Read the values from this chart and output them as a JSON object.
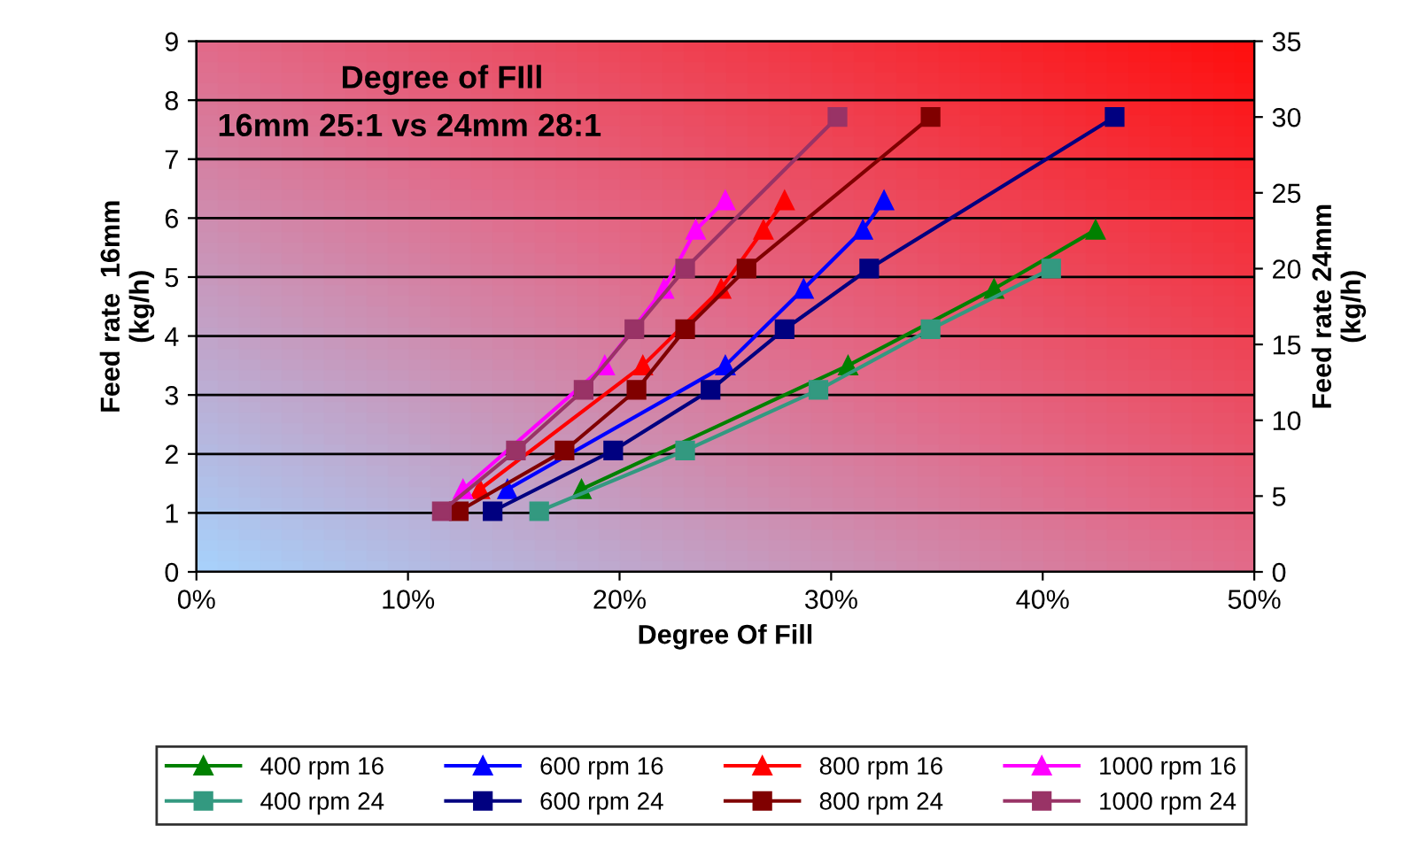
{
  "chart_data": {
    "type": "line",
    "title": "Degree of FIll",
    "subtitle": "16mm 25:1 vs 24mm 28:1",
    "xlabel": "Degree Of Fill",
    "ylabel": "Feed rate  16mm\n(kg/h)",
    "y2label": "Feed rate 24mm\n(kg/h)",
    "xlim": [
      0,
      50
    ],
    "xticks": [
      {
        "value": 0,
        "label": "0%"
      },
      {
        "value": 10,
        "label": "10%"
      },
      {
        "value": 20,
        "label": "20%"
      },
      {
        "value": 30,
        "label": "30%"
      },
      {
        "value": 40,
        "label": "40%"
      },
      {
        "value": 50,
        "label": "50%"
      }
    ],
    "ylim": [
      0,
      9
    ],
    "yticks": [
      0,
      1,
      2,
      3,
      4,
      5,
      6,
      7,
      8,
      9
    ],
    "y2lim": [
      0,
      35
    ],
    "y2ticks": [
      0,
      5,
      10,
      15,
      20,
      25,
      30,
      35
    ],
    "grid": "y",
    "legend": "bottom",
    "series": [
      {
        "name": "400 rpm 16",
        "color": "#008000",
        "marker": "triangle",
        "x": [
          18.2,
          30.8,
          37.7,
          42.5
        ],
        "values": [
          1.4,
          3.5,
          4.8,
          5.8
        ]
      },
      {
        "name": "400 rpm 24",
        "color": "#339980",
        "marker": "square",
        "axis": "y2",
        "x": [
          16.2,
          23.1,
          29.4,
          34.7,
          40.4
        ],
        "values": [
          4,
          8,
          12,
          16,
          20
        ]
      },
      {
        "name": "600 rpm 16",
        "color": "#0000ff",
        "marker": "triangle",
        "x": [
          14.7,
          25.0,
          28.7,
          31.5,
          32.5
        ],
        "values": [
          1.4,
          3.5,
          4.8,
          5.8,
          6.3
        ]
      },
      {
        "name": "600 rpm 24",
        "color": "#000080",
        "marker": "square",
        "axis": "y2",
        "x": [
          14.0,
          19.7,
          24.3,
          27.8,
          31.8,
          43.4
        ],
        "values": [
          4,
          8,
          12,
          16,
          20,
          30
        ]
      },
      {
        "name": "800 rpm 16",
        "color": "#ff0000",
        "marker": "triangle",
        "x": [
          13.4,
          21.1,
          24.8,
          26.8,
          27.8
        ],
        "values": [
          1.4,
          3.5,
          4.8,
          5.8,
          6.3
        ]
      },
      {
        "name": "800 rpm 24",
        "color": "#800000",
        "marker": "square",
        "axis": "y2",
        "x": [
          12.4,
          17.4,
          20.8,
          23.1,
          26.0,
          34.7
        ],
        "values": [
          4,
          8,
          12,
          16,
          20,
          30
        ]
      },
      {
        "name": "1000 rpm 16",
        "color": "#ff00ff",
        "marker": "triangle",
        "x": [
          12.6,
          19.3,
          22.1,
          23.6,
          25.0
        ],
        "values": [
          1.4,
          3.5,
          4.8,
          5.8,
          6.3
        ]
      },
      {
        "name": "1000 rpm 24",
        "color": "#993366",
        "marker": "square",
        "axis": "y2",
        "x": [
          11.6,
          15.1,
          18.3,
          20.7,
          23.1,
          30.3
        ],
        "values": [
          4,
          8,
          12,
          16,
          20,
          30
        ]
      }
    ]
  }
}
